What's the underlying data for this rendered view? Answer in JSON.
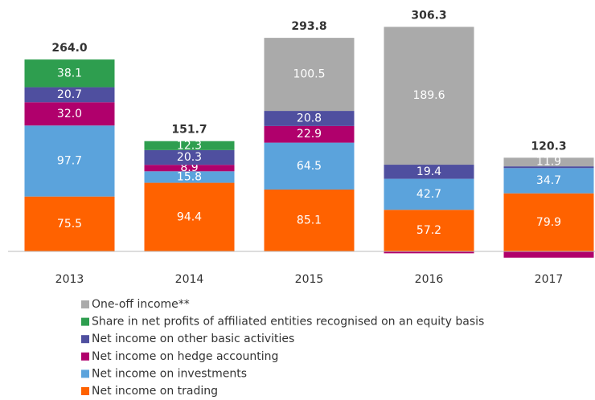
{
  "chart_data": {
    "type": "stacked_bar",
    "categories": [
      "2013",
      "2014",
      "2015",
      "2016",
      "2017"
    ],
    "series": [
      {
        "name": "Net income on trading",
        "color": "#ff6200",
        "values": [
          75.5,
          94.4,
          85.1,
          57.2,
          79.9
        ],
        "value_labels": [
          "75.5",
          "94.4",
          "85.1",
          "57.2",
          "79.9"
        ]
      },
      {
        "name": "Net income on investments",
        "color": "#5ba3dc",
        "values": [
          97.7,
          15.8,
          64.5,
          42.7,
          34.7
        ],
        "value_labels": [
          "97.7",
          "15.8",
          "64.5",
          "42.7",
          "34.7"
        ]
      },
      {
        "name": "Net income on hedge accounting",
        "color": "#b0006c",
        "values": [
          32.0,
          8.9,
          22.9,
          -2.6,
          -8.6
        ],
        "value_labels": [
          "32.0",
          "8.9",
          "22.9",
          null,
          null
        ]
      },
      {
        "name": "Net income on other basic activities",
        "color": "#4f4f9f",
        "values": [
          20.7,
          20.3,
          20.8,
          19.4,
          2.4
        ],
        "value_labels": [
          "20.7",
          "20.3",
          "20.8",
          "19.4",
          null
        ]
      },
      {
        "name": "Share in net profits of affiliated entities recognised on an equity basis",
        "color": "#2e9e4f",
        "values": [
          38.1,
          12.3,
          null,
          null,
          null
        ],
        "value_labels": [
          "38.1",
          "12.3",
          null,
          null,
          null
        ]
      },
      {
        "name": "One-off income**",
        "color": "#aaaaaa",
        "values": [
          null,
          null,
          100.5,
          189.6,
          11.9
        ],
        "value_labels": [
          null,
          null,
          "100.5",
          "189.6",
          "11.9"
        ]
      }
    ],
    "totals": [
      264.0,
      151.7,
      293.8,
      306.3,
      120.3
    ],
    "total_labels": [
      "264.0",
      "151.7",
      "293.8",
      "306.3",
      "120.3"
    ]
  }
}
